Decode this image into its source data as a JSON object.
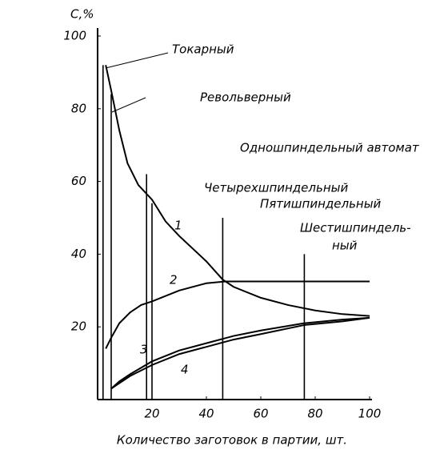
{
  "chart_data": {
    "type": "line",
    "ylabel": "C,%",
    "xlabel": "Количество заготовок в партии, шт.",
    "xlim": [
      0,
      100
    ],
    "xticks": [
      20,
      40,
      60,
      80,
      100
    ],
    "ylim": [
      0,
      100
    ],
    "yticks": [
      20,
      40,
      60,
      80,
      100
    ],
    "color": "#000000",
    "series": [
      {
        "name": "1",
        "x": [
          3,
          5,
          8,
          11,
          15,
          20,
          25,
          30,
          40,
          46,
          50,
          60,
          70,
          80,
          90,
          100
        ],
        "values": [
          92,
          85,
          74,
          65,
          59,
          55,
          49,
          45,
          38,
          33,
          31,
          28,
          26,
          24.5,
          23.5,
          23
        ]
      },
      {
        "name": "2",
        "x": [
          3,
          5,
          8,
          12,
          16,
          20,
          30,
          40,
          47,
          60,
          80,
          100
        ],
        "values": [
          14,
          17,
          21,
          24,
          26,
          27,
          30,
          32,
          32.5,
          32.5,
          32.5,
          32.5
        ]
      },
      {
        "name": "3",
        "x": [
          5,
          8,
          12,
          20,
          30,
          40,
          50,
          60,
          76,
          90,
          100
        ],
        "values": [
          3,
          5,
          7,
          10.5,
          13.5,
          15.5,
          17.5,
          19,
          21,
          22,
          22.5
        ]
      },
      {
        "name": "4",
        "x": [
          5,
          8,
          12,
          20,
          30,
          40,
          50,
          60,
          76,
          90,
          100
        ],
        "values": [
          3,
          4.5,
          6.5,
          9.5,
          12.5,
          14.5,
          16.5,
          18,
          20.5,
          21.5,
          22.5
        ]
      }
    ],
    "markers": [
      {
        "label": [
          "Токарный"
        ],
        "x": 2,
        "top": 92
      },
      {
        "label": [
          "Револьверный"
        ],
        "x": 5,
        "top": 84
      },
      {
        "label": [
          "Одношпиндельный автомат"
        ],
        "x": 18,
        "top": 62
      },
      {
        "label": [
          "Четырехшпиндельный"
        ],
        "x": 20,
        "top": 54
      },
      {
        "label": [
          "Пятишпиндельный"
        ],
        "x": 46,
        "top": 50
      },
      {
        "label": [
          "Шестишпиндель-",
          "ный"
        ],
        "x": 76,
        "top": 40
      }
    ]
  }
}
